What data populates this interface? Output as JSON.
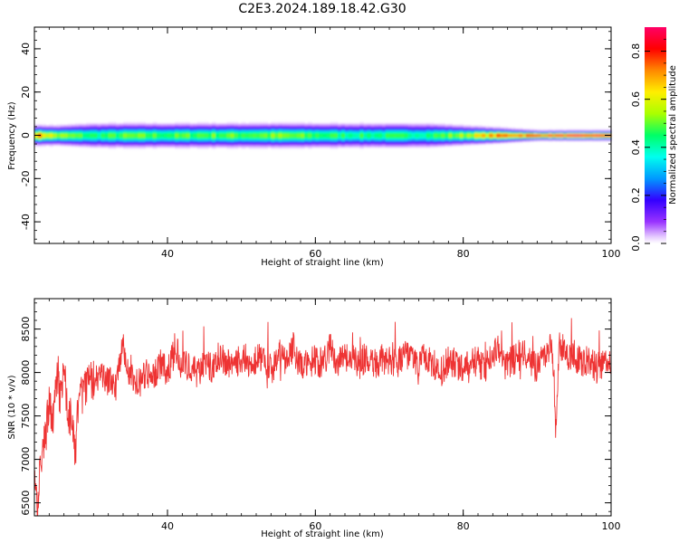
{
  "title": "C2E3.2024.189.18.42.G30",
  "chart_data": [
    {
      "type": "heatmap",
      "xlabel": "Height of straight line (km)",
      "ylabel": "Frequency (Hz)",
      "xlim": [
        22,
        100
      ],
      "ylim": [
        -50,
        50
      ],
      "xticks": [
        40,
        60,
        80,
        100
      ],
      "yticks": [
        -40,
        -20,
        0,
        20,
        40
      ],
      "colorbar": {
        "label": "Normalized spectral amplitude",
        "range": [
          0.0,
          0.9
        ],
        "ticks": [
          0.0,
          0.2,
          0.4,
          0.6,
          0.8
        ]
      },
      "description_values": {
        "x": [
          22,
          25,
          30,
          35,
          40,
          45,
          50,
          55,
          60,
          65,
          70,
          75,
          80,
          85,
          90,
          95,
          100
        ],
        "core_width_hz": [
          4,
          4,
          5,
          5,
          5,
          5,
          5,
          5,
          5,
          5,
          5,
          5,
          4,
          3,
          2,
          2,
          2
        ],
        "peak_amplitude": [
          0.75,
          0.55,
          0.45,
          0.5,
          0.48,
          0.5,
          0.5,
          0.52,
          0.48,
          0.45,
          0.45,
          0.45,
          0.55,
          0.75,
          0.8,
          0.85,
          0.85
        ]
      }
    },
    {
      "type": "line",
      "xlabel": "Height of straight line (km)",
      "ylabel": "SNR (10 * v/v)",
      "xlim": [
        22,
        100
      ],
      "ylim": [
        6350,
        8850
      ],
      "xticks": [
        40,
        60,
        80,
        100
      ],
      "yticks": [
        6500,
        7000,
        7500,
        8000,
        8500
      ],
      "color": "#ee3333",
      "series": [
        {
          "x": [
            22,
            22.5,
            23,
            23.5,
            24,
            24.5,
            25,
            25.5,
            26,
            26.5,
            27,
            27.5,
            28,
            29,
            30,
            31,
            32,
            33,
            34,
            35,
            36,
            37,
            38,
            39,
            40,
            41,
            42,
            43,
            44,
            45,
            46,
            47,
            48,
            49,
            50,
            51,
            52,
            53,
            54,
            55,
            56,
            57,
            58,
            59,
            60,
            61,
            62,
            63,
            64,
            65,
            66,
            67,
            68,
            69,
            70,
            71,
            72,
            73,
            74,
            75,
            76,
            77,
            78,
            79,
            80,
            81,
            82,
            83,
            84,
            85,
            86,
            87,
            88,
            89,
            90,
            91,
            92,
            92.5,
            93,
            94,
            95,
            96,
            97,
            98,
            99,
            100
          ],
          "y": [
            6800,
            6500,
            7100,
            7300,
            7600,
            7450,
            7900,
            7700,
            8000,
            7600,
            7400,
            7050,
            7700,
            7850,
            7900,
            7950,
            7900,
            7850,
            8300,
            7950,
            7850,
            8000,
            7950,
            8100,
            8000,
            8300,
            8050,
            8100,
            8000,
            8100,
            8050,
            8200,
            8100,
            8150,
            8100,
            8050,
            8150,
            8200,
            8000,
            8250,
            8150,
            8300,
            8050,
            8100,
            8150,
            8100,
            8300,
            8100,
            8200,
            8150,
            8100,
            8200,
            8100,
            8150,
            8150,
            8100,
            8200,
            8150,
            8100,
            8200,
            8100,
            8000,
            8150,
            8100,
            8050,
            8150,
            8100,
            8050,
            8200,
            8300,
            8100,
            8150,
            8250,
            8100,
            8050,
            8150,
            8300,
            7400,
            8350,
            8200,
            8200,
            8100,
            8150,
            8050,
            8100,
            8150
          ]
        }
      ]
    }
  ]
}
